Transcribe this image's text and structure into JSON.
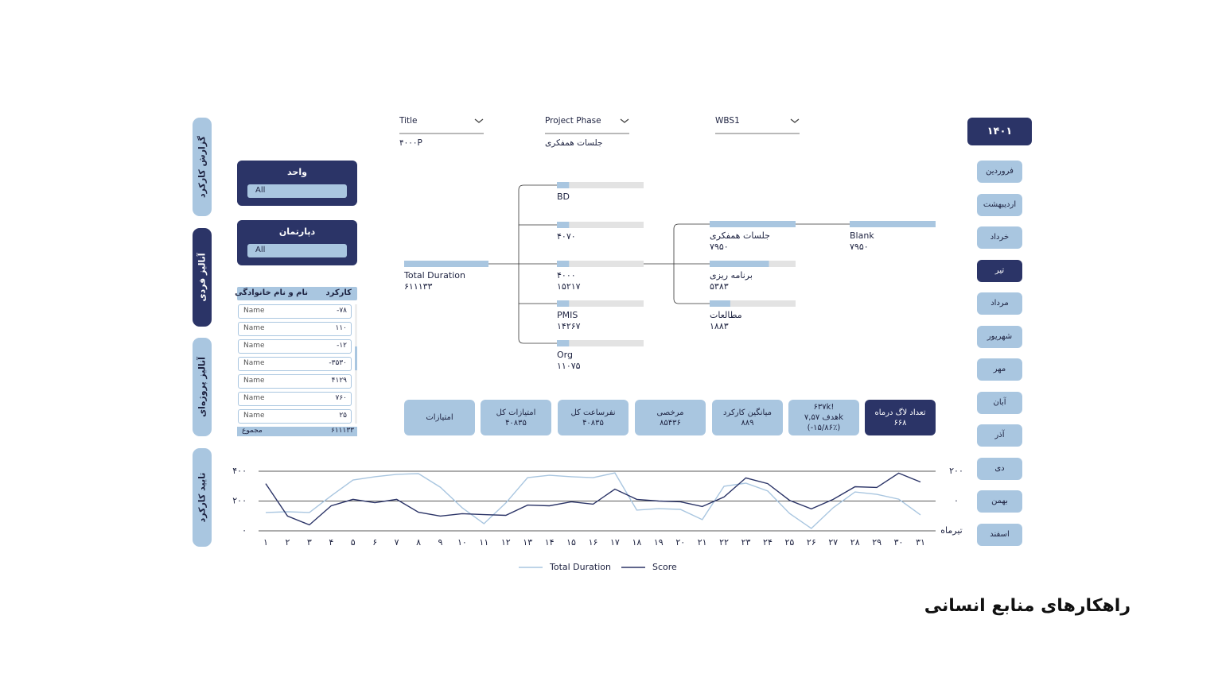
{
  "sidebar_tabs": [
    "گزارش کارکرد",
    "آنالیز فردی",
    "آنالیز پروژه‌ای",
    "تایید کارکرد"
  ],
  "filters": [
    {
      "label": "واحد",
      "value": "All"
    },
    {
      "label": "دپارتمان",
      "value": "All"
    }
  ],
  "table": {
    "headers": [
      "کارکرد",
      "نام و نام خانوادگی"
    ],
    "rows": [
      [
        "-۷۸",
        "Name"
      ],
      [
        "۱۱۰",
        "Name"
      ],
      [
        "-۱۲",
        "Name"
      ],
      [
        "-۳۵۳۰",
        "Name"
      ],
      [
        "۴۱۲۹",
        "Name"
      ],
      [
        "۷۶۰",
        "Name"
      ],
      [
        "۲۵",
        "Name"
      ]
    ],
    "footer": [
      "۶۱۱۱۳۳",
      "مجموع"
    ]
  },
  "slicers": [
    {
      "label": "Title",
      "value": "۴۰۰۰P"
    },
    {
      "label": "Project Phase",
      "value": "جلسات همفکری"
    },
    {
      "label": "WBS1"
    }
  ],
  "tree": {
    "root": {
      "label": "Total Duration",
      "value": "۶۱۱۱۳۳"
    },
    "level2": [
      {
        "label": "BD"
      },
      {
        "label": "۴۰۷۰"
      },
      {
        "label": "۴۰۰۰",
        "value": "۱۵۲۱۷"
      },
      {
        "label": "PMIS",
        "value": "۱۴۲۶۷"
      },
      {
        "label": "Org",
        "value": "۱۱۰۷۵"
      }
    ],
    "level3": [
      {
        "label": "جلسات همفکری",
        "value": "۷۹۵۰"
      },
      {
        "label": "برنامه ریزی",
        "value": "۵۳۸۳"
      },
      {
        "label": "مطالعات",
        "value": "۱۸۸۳"
      }
    ],
    "level4": [
      {
        "label": "Blank",
        "value": "۷۹۵۰"
      }
    ]
  },
  "cards": [
    {
      "lines": [
        "امتیازات"
      ]
    },
    {
      "lines": [
        "امتیازات کل",
        "۴۰۸۳۵"
      ]
    },
    {
      "lines": [
        "نفرساعت کل",
        "۴۰۸۳۵"
      ]
    },
    {
      "lines": [
        "مرخصی",
        "۸۵۴۳۶"
      ]
    },
    {
      "lines": [
        "میانگین کارکرد",
        "۸۸۹"
      ]
    },
    {
      "lines": [
        "۶۳۷k!",
        "هدف ۷,۵۷k",
        "(-۱۵/۸۶٪)"
      ]
    },
    {
      "lines": [
        "تعداد لاگ درماه",
        "۶۶۸"
      ]
    }
  ],
  "year": "۱۴۰۱",
  "months": [
    "فروردین",
    "اردیبهشت",
    "خرداد",
    "تیر",
    "مرداد",
    "شهریور",
    "مهر",
    "آبان",
    "آذر",
    "دی",
    "بهمن",
    "اسفند"
  ],
  "footer_title": "راهکارهای منابع انسانی",
  "chart_data": {
    "type": "line",
    "categories": [
      "۱",
      "۲",
      "۳",
      "۴",
      "۵",
      "۶",
      "۷",
      "۸",
      "۹",
      "۱۰",
      "۱۱",
      "۱۲",
      "۱۳",
      "۱۴",
      "۱۵",
      "۱۶",
      "۱۷",
      "۱۸",
      "۱۹",
      "۲۰",
      "۲۱",
      "۲۲",
      "۲۳",
      "۲۴",
      "۲۵",
      "۲۶",
      "۲۷",
      "۲۸",
      "۲۹",
      "۳۰",
      "۳۱"
    ],
    "ylim": [
      0,
      400
    ],
    "yticks": [
      {
        "value": 0,
        "label": "۰"
      },
      {
        "value": 200,
        "label": "۲۰۰"
      },
      {
        "value": 400,
        "label": "۴۰۰"
      }
    ],
    "y2lim": [
      -200,
      200
    ],
    "y2ticks": [
      {
        "value": 0,
        "label": "۰"
      },
      {
        "value": 200,
        "label": "۲۰۰"
      }
    ],
    "y2label": "تیرماه",
    "grid": true,
    "legend": "bottom",
    "series": [
      {
        "name": "Total Duration",
        "color": "#a9c6e0",
        "values": [
          123,
          128,
          123,
          235,
          341,
          363,
          379,
          384,
          293,
          155,
          48,
          187,
          357,
          373,
          363,
          357,
          389,
          139,
          149,
          144,
          75,
          299,
          320,
          267,
          117,
          16,
          155,
          261,
          245,
          213,
          107
        ]
      },
      {
        "name": "Score",
        "color": "#2b3467",
        "axis": "y2",
        "values": [
          117,
          -101,
          -160,
          -32,
          11,
          -11,
          11,
          -75,
          -101,
          -85,
          -91,
          -96,
          -27,
          -32,
          -5,
          -21,
          80,
          11,
          0,
          -5,
          -37,
          27,
          155,
          117,
          5,
          -53,
          11,
          96,
          91,
          187,
          128
        ]
      }
    ]
  }
}
